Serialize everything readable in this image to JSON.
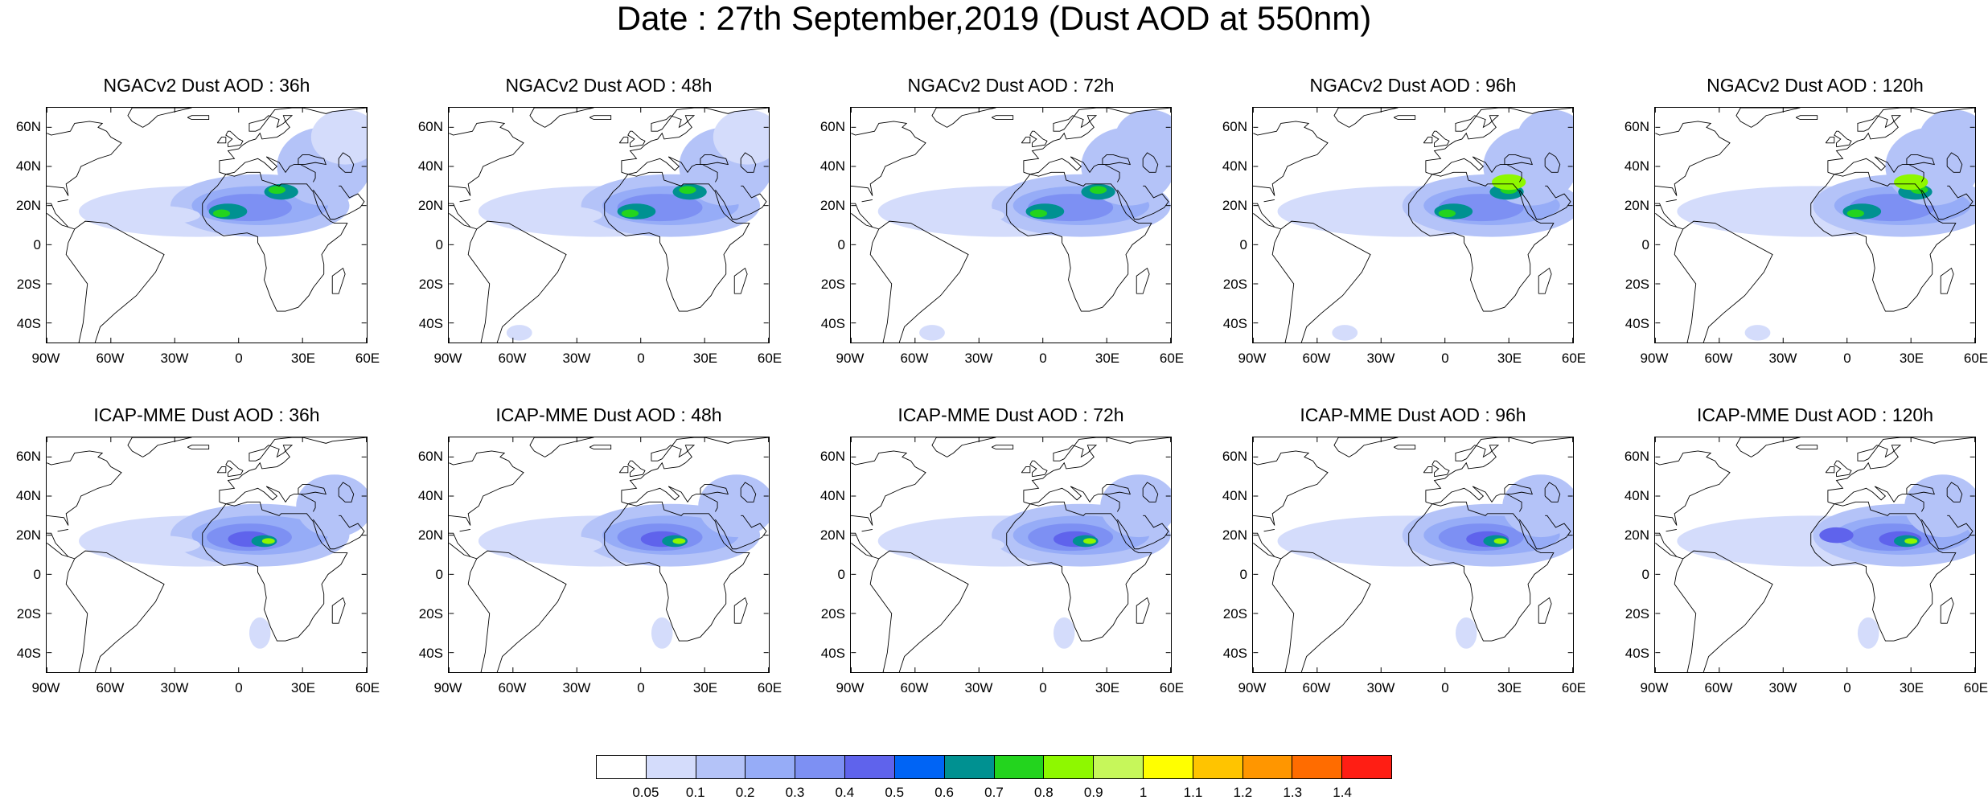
{
  "title": "Date : 27th September,2019 (Dust AOD at 550nm)",
  "panels": [
    {
      "title": "NGACv2 Dust AOD : 36h",
      "model": "NGACv2",
      "lead": "36h"
    },
    {
      "title": "NGACv2 Dust AOD : 48h",
      "model": "NGACv2",
      "lead": "48h"
    },
    {
      "title": "NGACv2 Dust AOD : 72h",
      "model": "NGACv2",
      "lead": "72h"
    },
    {
      "title": "NGACv2 Dust AOD : 96h",
      "model": "NGACv2",
      "lead": "96h"
    },
    {
      "title": "NGACv2 Dust AOD : 120h",
      "model": "NGACv2",
      "lead": "120h"
    },
    {
      "title": "ICAP-MME Dust AOD : 36h",
      "model": "ICAP-MME",
      "lead": "36h"
    },
    {
      "title": "ICAP-MME Dust AOD : 48h",
      "model": "ICAP-MME",
      "lead": "48h"
    },
    {
      "title": "ICAP-MME Dust AOD : 72h",
      "model": "ICAP-MME",
      "lead": "72h"
    },
    {
      "title": "ICAP-MME Dust AOD : 96h",
      "model": "ICAP-MME",
      "lead": "96h"
    },
    {
      "title": "ICAP-MME Dust AOD : 120h",
      "model": "ICAP-MME",
      "lead": "120h"
    }
  ],
  "lat_ticks": [
    "60N",
    "40N",
    "20N",
    "0",
    "20S",
    "40S"
  ],
  "lon_ticks": [
    "90W",
    "60W",
    "30W",
    "0",
    "30E",
    "60E"
  ],
  "map_extent": {
    "lon_min": -90,
    "lon_max": 60,
    "lat_min": -50,
    "lat_max": 70
  },
  "colorbar": {
    "labels": [
      "0.05",
      "0.1",
      "0.2",
      "0.3",
      "0.4",
      "0.5",
      "0.6",
      "0.7",
      "0.8",
      "0.9",
      "1",
      "1.1",
      "1.2",
      "1.3",
      "1.4"
    ],
    "colors": [
      "#ffffff",
      "#d4dcfb",
      "#b4c3f8",
      "#96acf7",
      "#7d90f3",
      "#5f63ec",
      "#0064f5",
      "#009191",
      "#23d41e",
      "#8ef800",
      "#c6f75a",
      "#ffff00",
      "#ffc400",
      "#ff9600",
      "#ff6c00",
      "#ff1e14"
    ]
  }
}
